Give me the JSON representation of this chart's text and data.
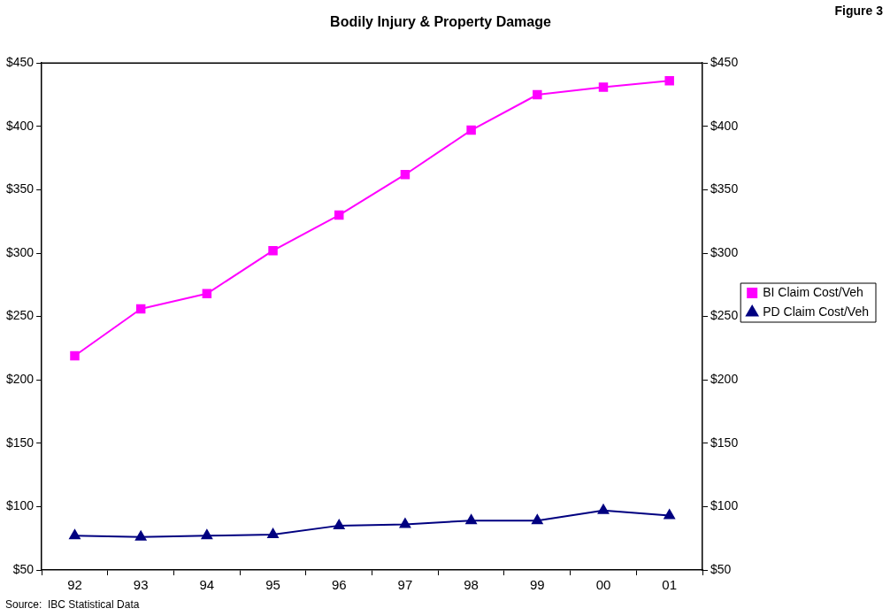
{
  "chart_data": {
    "type": "line",
    "title": "Bodily Injury & Property Damage",
    "annotations": [
      "Figure 3",
      "Source:  IBC Statistical Data"
    ],
    "categories": [
      "92",
      "93",
      "94",
      "95",
      "96",
      "97",
      "98",
      "99",
      "00",
      "01"
    ],
    "series": [
      {
        "name": "BI Claim Cost/Veh",
        "color": "#ff00ff",
        "marker": "square",
        "values": [
          219,
          256,
          268,
          302,
          330,
          362,
          397,
          425,
          431,
          436
        ]
      },
      {
        "name": "PD Claim Cost/Veh",
        "color": "#000080",
        "marker": "triangle",
        "values": [
          77,
          76,
          77,
          78,
          85,
          86,
          89,
          89,
          97,
          93
        ]
      }
    ],
    "ylim": [
      50,
      450
    ],
    "yticks": [
      {
        "value": 50,
        "label": "$50"
      },
      {
        "value": 100,
        "label": "$100"
      },
      {
        "value": 150,
        "label": "$150"
      },
      {
        "value": 200,
        "label": "$200"
      },
      {
        "value": 250,
        "label": "$250"
      },
      {
        "value": 300,
        "label": "$300"
      },
      {
        "value": 350,
        "label": "$350"
      },
      {
        "value": 400,
        "label": "$400"
      },
      {
        "value": 450,
        "label": "$450"
      }
    ],
    "y2lim": [
      50,
      450
    ],
    "y2ticks": [
      {
        "value": 50,
        "label": "$50"
      },
      {
        "value": 100,
        "label": "$100"
      },
      {
        "value": 150,
        "label": "$150"
      },
      {
        "value": 200,
        "label": "$200"
      },
      {
        "value": 250,
        "label": "$250"
      },
      {
        "value": 300,
        "label": "$300"
      },
      {
        "value": 350,
        "label": "$350"
      },
      {
        "value": 400,
        "label": "$400"
      },
      {
        "value": 450,
        "label": "$450"
      }
    ],
    "grid": false,
    "legend": "right",
    "line_style": "solid"
  }
}
